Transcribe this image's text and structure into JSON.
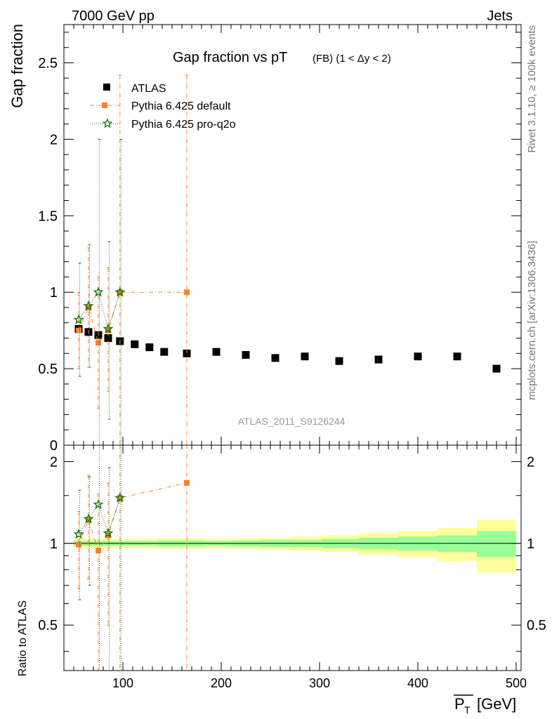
{
  "header": {
    "left": "7000 GeV pp",
    "right": "Jets"
  },
  "side_labels": {
    "top": "Rivet 3.1.10, ≥ 100k events",
    "bottom": "mcplots.cern.ch [arXiv:1306.3436]"
  },
  "colors": {
    "atlas": "#000000",
    "pythia_default": "#f58231",
    "pythia_pro_q2o": "#117711",
    "band_inner": "#99ff99",
    "band_outer": "#ffff99",
    "watermark": "#999999"
  },
  "chart_data": {
    "type": "scatter",
    "title_main": "Gap fraction vs pT",
    "title_sub": "(FB) (1 < Δy < 2)",
    "watermark": "ATLAS_2011_S9126244",
    "xlabel": "P_T [GeV]",
    "ylabel": "Gap fraction",
    "ratio_ylabel": "Ratio to ATLAS",
    "xlim": [
      40,
      505
    ],
    "ylim": [
      0,
      2.75
    ],
    "ratio_ylim": [
      0.34,
      2.3
    ],
    "x_ticks": [
      100,
      200,
      300,
      400,
      500
    ],
    "y_ticks": [
      0.5,
      1,
      1.5,
      2,
      2.5
    ],
    "y_tick_labels": [
      "0.5",
      "1",
      "1.5",
      "2",
      "2.5"
    ],
    "y_zero_label": "0",
    "ratio_ticks": [
      0.5,
      1,
      2
    ],
    "ratio_tick_labels": [
      "0.5",
      "1",
      "2"
    ],
    "legend": [
      "ATLAS",
      "Pythia 6.425 default",
      "Pythia 6.425 pro-q2o"
    ],
    "legend_position": "top-left",
    "series": [
      {
        "name": "ATLAS",
        "x": [
          55,
          65,
          75,
          85,
          97,
          112,
          127,
          142,
          165,
          195,
          225,
          255,
          285,
          320,
          360,
          400,
          440,
          480
        ],
        "y": [
          0.76,
          0.74,
          0.72,
          0.7,
          0.68,
          0.66,
          0.64,
          0.61,
          0.6,
          0.61,
          0.59,
          0.57,
          0.58,
          0.55,
          0.56,
          0.58,
          0.58,
          0.5
        ],
        "ratio_band_half_width_inner": [
          0.02,
          0.02,
          0.02,
          0.02,
          0.02,
          0.02,
          0.02,
          0.025,
          0.025,
          0.02,
          0.025,
          0.03,
          0.03,
          0.04,
          0.05,
          0.06,
          0.07,
          0.11
        ],
        "ratio_band_half_width_outer": [
          0.04,
          0.04,
          0.04,
          0.04,
          0.04,
          0.04,
          0.04,
          0.045,
          0.045,
          0.04,
          0.045,
          0.05,
          0.06,
          0.07,
          0.09,
          0.11,
          0.14,
          0.22
        ]
      },
      {
        "name": "Pythia 6.425 default",
        "x": [
          55,
          65,
          75,
          85,
          97,
          165
        ],
        "y": [
          0.75,
          0.9,
          0.67,
          0.75,
          1.0,
          1.0
        ],
        "y_lo": [
          0.5,
          0.51,
          0.24,
          0.35,
          0.0,
          0.0
        ],
        "y_hi": [
          1.0,
          1.29,
          1.1,
          1.16,
          2.42,
          2.42
        ],
        "ratio": [
          0.99,
          1.22,
          0.94,
          1.07,
          1.47,
          1.67
        ],
        "ratio_lo": [
          0.68,
          0.74,
          0.3,
          0.5,
          0.0,
          0.0
        ],
        "ratio_hi": [
          1.31,
          1.78,
          1.52,
          1.67,
          3.5,
          3.5
        ]
      },
      {
        "name": "Pythia 6.425 pro-q2o",
        "x": [
          55,
          65,
          75,
          85,
          97
        ],
        "y": [
          0.82,
          0.91,
          1.0,
          0.76,
          1.0
        ],
        "y_lo": [
          0.45,
          0.51,
          0.0,
          0.17,
          0.0
        ],
        "y_hi": [
          1.19,
          1.31,
          2.0,
          1.33,
          2.0
        ],
        "ratio": [
          1.08,
          1.23,
          1.39,
          1.09,
          1.47
        ],
        "ratio_lo": [
          0.62,
          0.7,
          0.0,
          0.25,
          0.0
        ],
        "ratio_hi": [
          1.57,
          1.76,
          2.78,
          1.9,
          2.94
        ]
      }
    ]
  }
}
